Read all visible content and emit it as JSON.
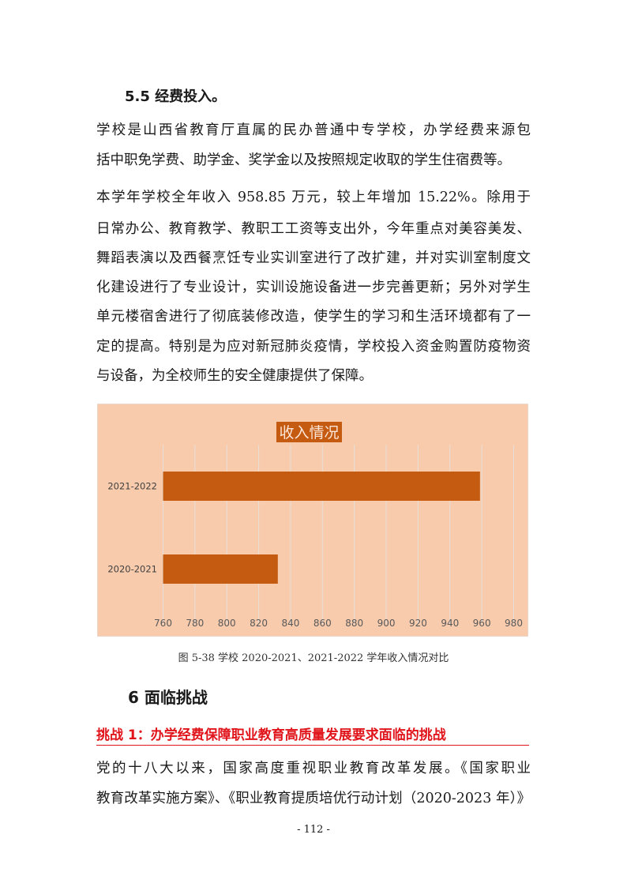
{
  "section_heading": "5.5 经费投入。",
  "paragraph1": [
    "学校是山西省教育厅直属的民办普通中专学校，办学经费来源包",
    "括中职免学费、助学金、奖学金以及按照规定收取的学生住宿费等。"
  ],
  "paragraph2": [
    "本学年学校全年收入 958.85 万元，较上年增加 15.22%。除用于",
    "日常办公、教育教学、教职工工资等支出外，今年重点对美容美发、",
    "舞蹈表演以及西餐烹饪专业实训室进行了改扩建，并对实训室制度文",
    "化建设进行了专业设计，实训设施设备进一步完善更新；另外对学生",
    "单元楼宿舍进行了彻底装修改造，使学生的学习和生活环境都有了一",
    "定的提高。特别是为应对新冠肺炎疫情，学校投入资金购置防疫物资",
    "与设备，为全校师生的安全健康提供了保障。"
  ],
  "chart_data": {
    "type": "bar",
    "orientation": "horizontal",
    "title": "收入情况",
    "categories": [
      "2021-2022",
      "2020-2021"
    ],
    "values": [
      958.85,
      832
    ],
    "xlim": [
      760,
      980
    ],
    "xticks": [
      "760",
      "780",
      "800",
      "820",
      "840",
      "860",
      "880",
      "900",
      "920",
      "940",
      "960",
      "980"
    ],
    "grid": true,
    "colors": {
      "bar": "#c55a11",
      "background": "#f8cbad",
      "title_bg": "#c55a11",
      "grid": "#e8e0d8"
    }
  },
  "figure_caption": "图 5-38 学校 2020-2021、2021-2022 学年收入情况对比",
  "chapter_heading": "6 面临挑战",
  "challenge_heading": "挑战 1：办学经费保障职业教育高质量发展要求面临的挑战",
  "paragraph3": [
    "党的十八大以来，国家高度重视职业教育改革发展。《国家职业",
    "教育改革实施方案》、《职业教育提质培优行动计划（2020-2023 年）》"
  ],
  "page_number": "- 112 -"
}
